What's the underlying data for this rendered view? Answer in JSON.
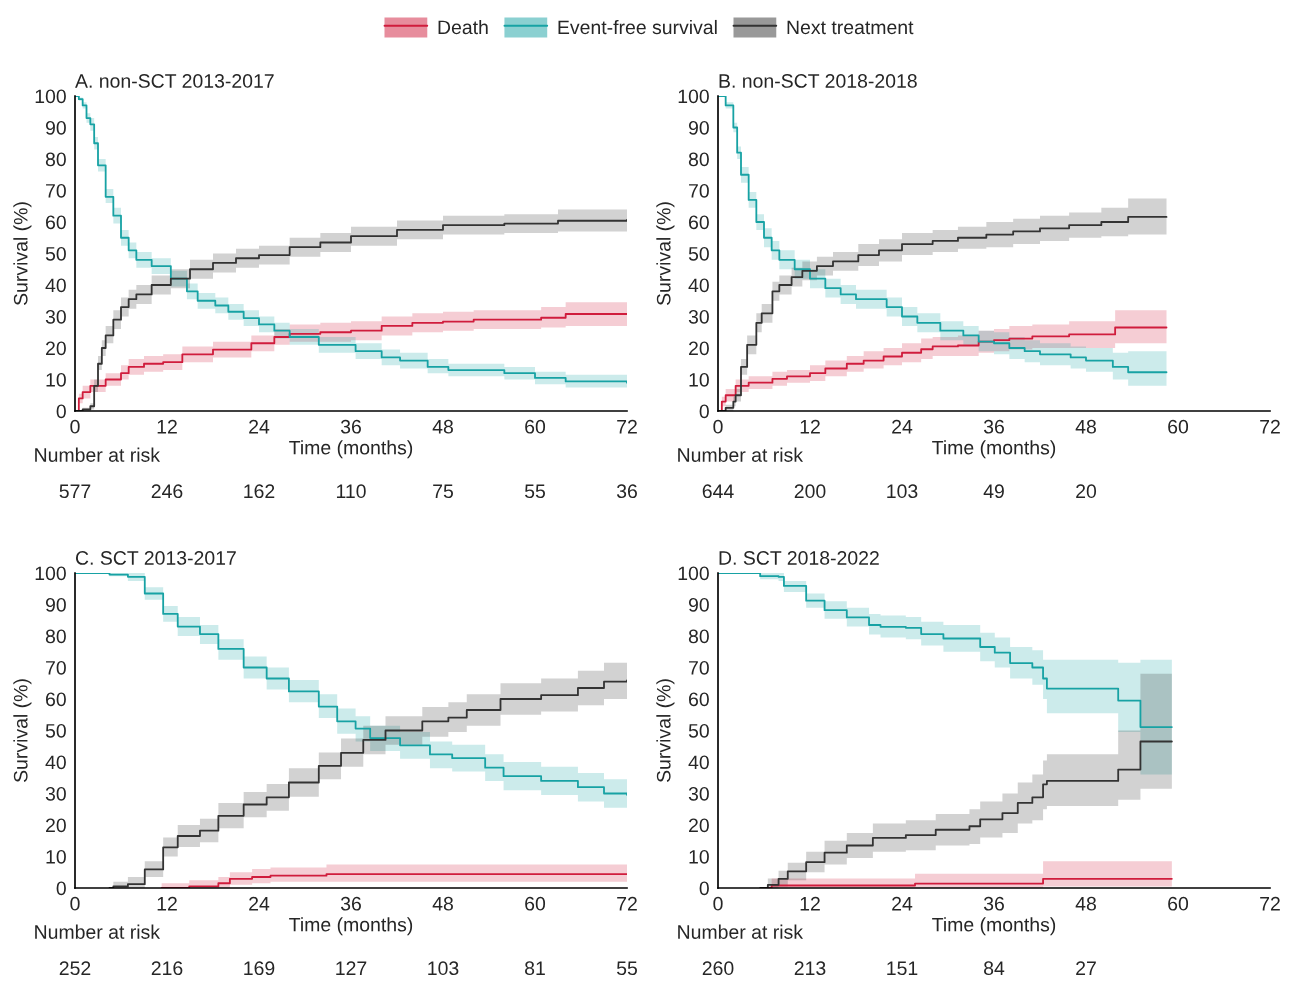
{
  "chart_data": [
    {
      "type": "step",
      "title": "A. non-SCT 2013-2017",
      "xlabel": "Time (months)",
      "ylabel": "Survival (%)",
      "xlim": [
        0,
        72
      ],
      "xticks": [
        0,
        12,
        24,
        36,
        48,
        60,
        72
      ],
      "ylim": [
        0,
        100
      ],
      "yticks": [
        0,
        10,
        20,
        30,
        40,
        50,
        60,
        70,
        80,
        90,
        100
      ],
      "grid": false,
      "legend": "top",
      "line_style": "solid",
      "marker": "none",
      "annotations": [
        "Number at risk",
        "577",
        "246",
        "162",
        "110",
        "75",
        "55",
        "36"
      ],
      "series": [
        {
          "name": "Death",
          "color": "#d01c3c",
          "x": [
            0,
            0.5,
            1,
            2,
            4,
            6,
            7,
            9,
            11.5,
            14,
            18,
            23,
            26,
            28,
            32,
            36,
            40,
            44,
            48,
            52,
            60.8,
            64,
            72
          ],
          "values": [
            0,
            4,
            6,
            8,
            10,
            12,
            14,
            15,
            15.5,
            18,
            19.5,
            21.5,
            23.5,
            24.5,
            25,
            25.5,
            27,
            28,
            28.4,
            29,
            29.6,
            30.8,
            30.8
          ],
          "lower": [
            0,
            2.5,
            4,
            6,
            8,
            10,
            11.5,
            12.5,
            13,
            15.5,
            17,
            19,
            21,
            22,
            22,
            22.5,
            24,
            25,
            25.5,
            26,
            26.5,
            27,
            27
          ],
          "upper": [
            0,
            5.5,
            8,
            10,
            12,
            14.5,
            16.5,
            17.5,
            18,
            20.5,
            22,
            24,
            26,
            27.5,
            28,
            28.5,
            30,
            31,
            31.5,
            32,
            33,
            34.5,
            34.5
          ]
        },
        {
          "name": "Event-free survival",
          "color": "#17a2a4",
          "x": [
            0,
            0.5,
            1,
            1.5,
            2,
            2.5,
            3,
            4,
            5,
            6,
            7,
            8,
            10,
            12.5,
            14.6,
            16,
            18.3,
            20,
            22,
            24,
            26,
            28,
            31.8,
            36.6,
            40,
            42.4,
            46,
            48.7,
            56,
            60,
            64,
            72
          ],
          "values": [
            100,
            99,
            97,
            93,
            91,
            85,
            78,
            68,
            62,
            55,
            51,
            48,
            46,
            42,
            38,
            35,
            33.5,
            31.5,
            29.5,
            27.5,
            25.5,
            23.5,
            21,
            19,
            17,
            16,
            14,
            13,
            12,
            10.5,
            9.4,
            9
          ],
          "lower": [
            100,
            98.5,
            96,
            91.5,
            89,
            83,
            76,
            66,
            59.5,
            52.5,
            48.5,
            45.5,
            43.5,
            39.5,
            35.5,
            32.5,
            31,
            29,
            27,
            25,
            23,
            21,
            18.5,
            16.5,
            14.5,
            13.5,
            12,
            11,
            10,
            8.5,
            7.5,
            7
          ],
          "upper": [
            100,
            99.5,
            98,
            94.5,
            93,
            87,
            80,
            70.5,
            64.5,
            57.5,
            53.5,
            50.5,
            48.5,
            44.5,
            40.5,
            37.5,
            36,
            34,
            32,
            30,
            28,
            26,
            23.5,
            21.5,
            19.5,
            18.5,
            16.5,
            15,
            14,
            12.5,
            11.5,
            11
          ]
        },
        {
          "name": "Next treatment",
          "color": "#333333",
          "x": [
            0,
            1,
            2,
            2.5,
            3,
            3.5,
            4,
            5,
            6,
            7,
            8,
            10,
            12.5,
            15,
            18,
            21,
            24,
            28,
            32,
            36,
            42,
            48,
            56,
            63,
            72
          ],
          "values": [
            0,
            0.5,
            1.5,
            8,
            15,
            20,
            24,
            29,
            33,
            35.5,
            37,
            40,
            42,
            45,
            47,
            48.5,
            49.5,
            52,
            53.5,
            55.5,
            57.5,
            59,
            59.5,
            60.4,
            60.7
          ],
          "lower": [
            0,
            0,
            0.5,
            6,
            13,
            17.5,
            21.5,
            26,
            30,
            32.5,
            34,
            37,
            39,
            42,
            44,
            45.5,
            46.5,
            49,
            50.5,
            52.5,
            54.5,
            56,
            56.5,
            57,
            57
          ],
          "upper": [
            0,
            1,
            2.5,
            10,
            17.5,
            22.5,
            27,
            32,
            36,
            38.5,
            40,
            43,
            45,
            48,
            50,
            51.5,
            52.5,
            55,
            56.5,
            58.5,
            60.5,
            62,
            62.5,
            64,
            64.5
          ]
        }
      ]
    },
    {
      "type": "step",
      "title": "B. non-SCT 2018-2018",
      "xlabel": "Time (months)",
      "ylabel": "Survival (%)",
      "xlim": [
        0,
        72
      ],
      "xticks": [
        0,
        12,
        24,
        36,
        48,
        60,
        72
      ],
      "ylim": [
        0,
        100
      ],
      "yticks": [
        0,
        10,
        20,
        30,
        40,
        50,
        60,
        70,
        80,
        90,
        100
      ],
      "grid": false,
      "line_style": "solid",
      "marker": "none",
      "annotations": [
        "Number at risk",
        "644",
        "200",
        "103",
        "49",
        "20"
      ],
      "series": [
        {
          "color": "#d01c3c",
          "x": [
            0,
            0.5,
            1,
            2.3,
            4,
            7.1,
            9,
            12,
            14,
            16.8,
            19,
            21.6,
            24,
            26.5,
            28,
            31.3,
            34,
            36,
            38,
            41,
            45.8,
            51.8,
            58.5
          ],
          "values": [
            0,
            3,
            5,
            8,
            9,
            10.2,
            11,
            12,
            13.5,
            15,
            16,
            17.3,
            18.5,
            19.6,
            20.5,
            20.8,
            22,
            22.5,
            23,
            23.7,
            24.3,
            26.5,
            26.5
          ],
          "lower": [
            0,
            1.5,
            3,
            6,
            7,
            8,
            9,
            9.5,
            11,
            12.5,
            13.5,
            14.5,
            15.5,
            16.5,
            17.5,
            17.5,
            18.5,
            19,
            19.5,
            20,
            20,
            21.5,
            21.5
          ],
          "upper": [
            0,
            4.5,
            7,
            10,
            11,
            12.5,
            13,
            14.5,
            16,
            17.5,
            19,
            20,
            21.5,
            23,
            23.5,
            24,
            25.5,
            26,
            27,
            27.5,
            28.5,
            32,
            32
          ]
        },
        {
          "color": "#17a2a4",
          "x": [
            0,
            1,
            2,
            2.5,
            3,
            4,
            5,
            6,
            7,
            8,
            10,
            12,
            14,
            16,
            18,
            22,
            24,
            26,
            29,
            32,
            34,
            36,
            38,
            40,
            42,
            46,
            48,
            51.5,
            53.5,
            58.5
          ],
          "values": [
            100,
            97,
            90,
            82,
            75,
            67,
            60,
            55,
            51,
            48,
            45,
            42,
            39,
            37,
            35.5,
            33,
            30,
            28,
            25.5,
            24,
            22,
            21.5,
            20,
            19,
            18,
            17,
            16,
            14,
            12.3,
            12.3
          ],
          "lower": [
            100,
            96,
            88.5,
            80,
            72.5,
            64.5,
            57.5,
            52,
            48,
            45,
            42,
            39,
            36,
            34,
            32.5,
            30,
            27,
            25,
            22.5,
            21,
            19,
            18,
            16.5,
            15.5,
            14.5,
            13.5,
            12.5,
            10,
            8,
            8
          ],
          "upper": [
            100,
            98,
            91.5,
            84,
            77.5,
            69.5,
            62.5,
            58,
            54,
            51,
            48,
            45,
            42,
            40,
            38.5,
            36,
            33,
            31,
            28.5,
            27,
            25.5,
            25,
            23.5,
            22.5,
            21.5,
            20.5,
            20,
            18.5,
            19,
            19
          ]
        },
        {
          "color": "#333333",
          "x": [
            0,
            1,
            2,
            2.3,
            3,
            3.8,
            5,
            5.7,
            7.1,
            8,
            9.6,
            11,
            12.9,
            15,
            18.3,
            21,
            24,
            28,
            31.3,
            35,
            38.5,
            42,
            45.8,
            50,
            53.5,
            58.5
          ],
          "values": [
            0,
            1,
            3,
            5,
            14,
            21,
            28,
            31,
            38,
            40,
            42.5,
            44.5,
            46,
            47.5,
            49.5,
            51,
            53,
            54,
            55,
            56,
            57,
            58,
            59,
            60,
            61.6,
            61.6
          ],
          "lower": [
            0,
            0,
            1.5,
            3,
            11.5,
            18,
            25,
            28,
            35,
            37,
            39.5,
            41.5,
            43,
            44.5,
            46,
            47.5,
            49.5,
            50.5,
            51.5,
            52,
            53,
            54,
            55,
            55.5,
            56,
            56
          ],
          "upper": [
            0,
            2,
            4.5,
            7,
            16.5,
            24,
            31,
            34,
            41,
            43,
            45.5,
            47.5,
            49,
            50.5,
            53,
            54.5,
            56.5,
            57.5,
            58.5,
            60,
            61,
            62,
            63,
            64.5,
            67.5,
            67.5
          ]
        }
      ]
    },
    {
      "type": "step",
      "title": "C. SCT 2013-2017",
      "xlabel": "Time (months)",
      "ylabel": "Survival (%)",
      "xlim": [
        0,
        72
      ],
      "xticks": [
        0,
        12,
        24,
        36,
        48,
        60,
        72
      ],
      "ylim": [
        0,
        100
      ],
      "yticks": [
        0,
        10,
        20,
        30,
        40,
        50,
        60,
        70,
        80,
        90,
        100
      ],
      "grid": false,
      "line_style": "solid",
      "marker": "none",
      "annotations": [
        "Number at risk",
        "252",
        "216",
        "169",
        "127",
        "103",
        "81",
        "55"
      ],
      "series": [
        {
          "color": "#d01c3c",
          "x": [
            11.3,
            14.9,
            18.7,
            20.2,
            23.1,
            25.5,
            32.8,
            72
          ],
          "values": [
            0,
            0.5,
            1.5,
            2.9,
            3.5,
            3.9,
            4.4,
            4.4
          ],
          "lower": [
            0,
            0,
            0,
            1,
            1.5,
            2,
            2,
            2
          ],
          "upper": [
            1.5,
            2.5,
            3.5,
            5,
            6,
            6.5,
            7.5,
            7.5
          ]
        },
        {
          "color": "#17a2a4",
          "x": [
            0,
            4.5,
            6.9,
            9.1,
            11.5,
            13.4,
            16.3,
            18.7,
            22,
            25,
            27.9,
            31.8,
            34.2,
            36.6,
            38.5,
            42.4,
            46.3,
            49.2,
            53.5,
            55.9,
            60.8,
            65.6,
            69,
            72
          ],
          "values": [
            100,
            99.5,
            98.8,
            93.5,
            87,
            83,
            80.6,
            75.9,
            70,
            66.5,
            62.4,
            57.6,
            52.9,
            50.6,
            47.6,
            45.3,
            42.4,
            41.2,
            38.2,
            35.5,
            34,
            32,
            30,
            29.6
          ],
          "lower": [
            100,
            99,
            97.5,
            91.5,
            84.5,
            80,
            77.5,
            72.5,
            66.5,
            63,
            59,
            54,
            49,
            46.5,
            43.5,
            41,
            38,
            37,
            34,
            31,
            29.5,
            27.5,
            25.5,
            25
          ],
          "upper": [
            100,
            100,
            100,
            95.5,
            89.5,
            86,
            83.5,
            79,
            73.5,
            70,
            66,
            61.5,
            57,
            54.5,
            51.5,
            49.5,
            46.5,
            45.5,
            42.5,
            40,
            38.5,
            36.5,
            34.5,
            35
          ]
        },
        {
          "color": "#333333",
          "x": [
            4.5,
            5,
            6.9,
            9.1,
            11.5,
            13.4,
            16.3,
            18.7,
            22,
            25,
            27.9,
            31.8,
            34.7,
            37.6,
            40.5,
            45.3,
            48.7,
            51.1,
            55.5,
            60.8,
            65.6,
            69,
            72
          ],
          "values": [
            0,
            0.5,
            1.2,
            5.9,
            12.9,
            16.5,
            18.2,
            22.9,
            26.5,
            28.8,
            33.5,
            38.8,
            42.9,
            47,
            50,
            52.9,
            54.1,
            56.5,
            60,
            61.2,
            63.5,
            65.5,
            65.9
          ],
          "lower": [
            0,
            0,
            0,
            3.5,
            10,
            13,
            14.5,
            19,
            22.5,
            24.5,
            29,
            34.5,
            38.5,
            42.5,
            45.5,
            48,
            49.5,
            51.5,
            55,
            56,
            58,
            60,
            60.5
          ],
          "upper": [
            0,
            2,
            3.5,
            8.5,
            16,
            20,
            22,
            27,
            30.5,
            33,
            38,
            43,
            47.5,
            51.5,
            54.5,
            57.5,
            59,
            61.5,
            65,
            66.5,
            69,
            71.5,
            72.5
          ]
        }
      ]
    },
    {
      "type": "step",
      "title": "D. SCT 2018-2022",
      "xlabel": "Time (months)",
      "ylabel": "Survival (%)",
      "xlim": [
        0,
        72
      ],
      "xticks": [
        0,
        12,
        24,
        36,
        48,
        60,
        72
      ],
      "ylim": [
        0,
        100
      ],
      "yticks": [
        0,
        10,
        20,
        30,
        40,
        50,
        60,
        70,
        80,
        90,
        100
      ],
      "grid": false,
      "line_style": "solid",
      "marker": "none",
      "annotations": [
        "Number at risk",
        "260",
        "213",
        "151",
        "84",
        "27"
      ],
      "series": [
        {
          "color": "#d01c3c",
          "x": [
            6.4,
            7,
            25.7,
            42.4,
            59.2
          ],
          "values": [
            0,
            0.8,
            1.4,
            2.9,
            2.9
          ],
          "lower": [
            0,
            0,
            0,
            0.5,
            0.5
          ],
          "upper": [
            0,
            3,
            4.5,
            8.5,
            8.5
          ]
        },
        {
          "color": "#17a2a4",
          "x": [
            0,
            5.5,
            7.9,
            8.6,
            11.5,
            13.9,
            16.8,
            19.7,
            21.2,
            24.5,
            26.5,
            29.4,
            32.8,
            34.2,
            36.1,
            38.1,
            41,
            42.4,
            42.9,
            52.2,
            55.1,
            59.2
          ],
          "values": [
            100,
            99,
            98.8,
            95.9,
            91.2,
            88.2,
            85.9,
            83.5,
            82.9,
            82.6,
            80.6,
            79.2,
            79.2,
            76.5,
            74.7,
            71.4,
            70,
            66.5,
            63.3,
            59.5,
            51.1,
            51.1
          ],
          "lower": [
            100,
            98,
            97.5,
            94,
            89,
            85.5,
            83,
            80.5,
            79.5,
            79,
            77,
            75,
            75,
            72,
            70,
            66.5,
            64.5,
            60,
            55.5,
            49.5,
            36,
            36
          ],
          "upper": [
            100,
            100,
            100,
            97.5,
            93.5,
            91,
            89,
            87,
            86.5,
            86,
            84.5,
            83.5,
            83.5,
            81,
            79.5,
            76.5,
            75.5,
            72.5,
            72.5,
            71.5,
            72.5,
            72.5
          ]
        },
        {
          "color": "#333333",
          "x": [
            5.5,
            6.5,
            7.9,
            9.1,
            11.5,
            13.9,
            16.8,
            20.2,
            24.5,
            28.4,
            32.8,
            34.2,
            37.1,
            39.1,
            41,
            42.4,
            42.9,
            52.2,
            55.1,
            59.2
          ],
          "values": [
            0,
            1,
            2.9,
            5.3,
            8.2,
            11.2,
            13.5,
            15.9,
            16.8,
            18.5,
            19.6,
            21.8,
            23.8,
            27,
            28.8,
            32.9,
            34,
            37.6,
            46.5,
            46.5
          ],
          "lower": [
            0,
            0,
            0.5,
            2.5,
            5,
            7.5,
            9.5,
            11.5,
            12,
            13.5,
            14,
            16,
            17.5,
            20.5,
            21.5,
            25,
            26,
            28,
            31.5,
            31.5
          ],
          "upper": [
            0,
            3,
            5.5,
            8,
            11.5,
            15,
            17.5,
            20.5,
            21.5,
            23.5,
            25,
            27.5,
            30,
            33.5,
            36,
            40.5,
            42.5,
            50,
            68,
            68
          ]
        }
      ]
    }
  ]
}
